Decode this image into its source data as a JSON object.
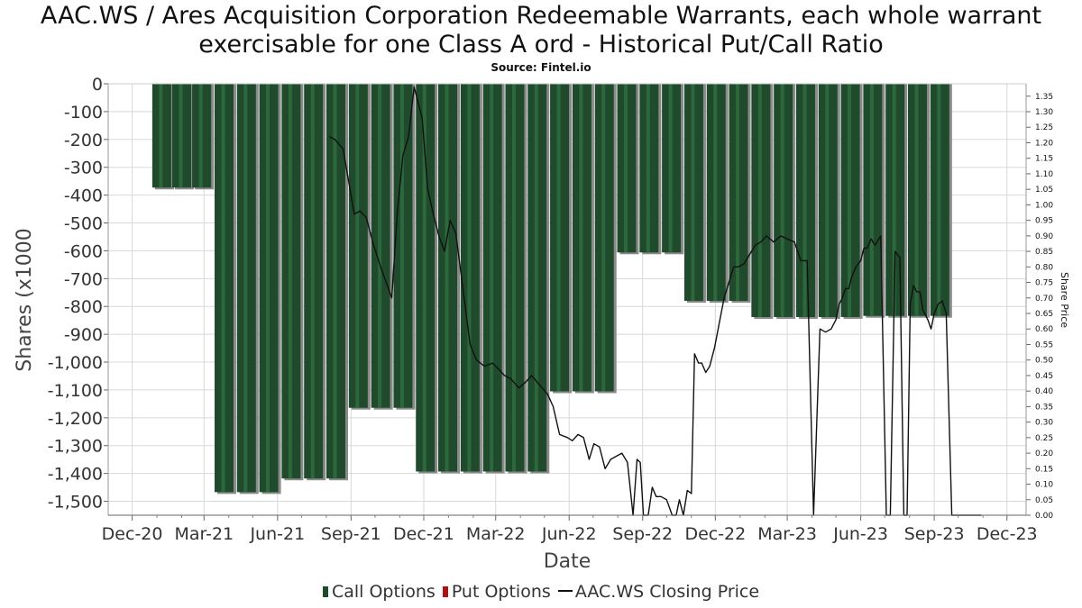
{
  "title": "AAC.WS / Ares Acquisition Corporation Redeemable Warrants, each whole warrant exercisable for one Class A ord - Historical Put/Call Ratio",
  "subtitle": "Source: Fintel.io",
  "colors": {
    "call": "#1f4a2c",
    "put": "#b01010",
    "price": "#111111",
    "grid": "#d8d8d8"
  },
  "chart_data": {
    "type": "bar",
    "xlabel": "Date",
    "ylabel": "Shares (x1000",
    "y2label": "Share Price",
    "x_range": [
      "2020-11-01",
      "2023-12-25"
    ],
    "ylim": [
      -1550,
      0
    ],
    "y2lim": [
      0,
      1.39
    ],
    "grid": true,
    "legend_position": "bottom",
    "x_ticks": [
      {
        "label": "Dec-20",
        "date": "2020-12-01"
      },
      {
        "label": "Mar-21",
        "date": "2021-03-01"
      },
      {
        "label": "Jun-21",
        "date": "2021-06-01"
      },
      {
        "label": "Sep-21",
        "date": "2021-09-01"
      },
      {
        "label": "Dec-21",
        "date": "2021-12-01"
      },
      {
        "label": "Mar-22",
        "date": "2022-03-01"
      },
      {
        "label": "Jun-22",
        "date": "2022-06-01"
      },
      {
        "label": "Sep-22",
        "date": "2022-09-01"
      },
      {
        "label": "Dec-22",
        "date": "2022-12-01"
      },
      {
        "label": "Mar-23",
        "date": "2023-03-01"
      },
      {
        "label": "Jun-23",
        "date": "2023-06-01"
      },
      {
        "label": "Sep-23",
        "date": "2023-09-01"
      },
      {
        "label": "Dec-23",
        "date": "2023-12-01"
      }
    ],
    "y_ticks": [
      {
        "value": 0,
        "label": "0"
      },
      {
        "value": -100,
        "label": "-100"
      },
      {
        "value": -200,
        "label": "-200"
      },
      {
        "value": -300,
        "label": "-300"
      },
      {
        "value": -400,
        "label": "-400"
      },
      {
        "value": -500,
        "label": "-500"
      },
      {
        "value": -600,
        "label": "-600"
      },
      {
        "value": -700,
        "label": "-700"
      },
      {
        "value": -800,
        "label": "-800"
      },
      {
        "value": -900,
        "label": "-900"
      },
      {
        "value": -1000,
        "label": "-1,000"
      },
      {
        "value": -1100,
        "label": "-1,100"
      },
      {
        "value": -1200,
        "label": "-1,200"
      },
      {
        "value": -1300,
        "label": "-1,300"
      },
      {
        "value": -1400,
        "label": "-1,400"
      },
      {
        "value": -1500,
        "label": "-1,500"
      }
    ],
    "y2_ticks": [
      {
        "value": 0.0,
        "label": "0.00"
      },
      {
        "value": 0.05,
        "label": "0.05"
      },
      {
        "value": 0.1,
        "label": "0.10"
      },
      {
        "value": 0.15,
        "label": "0.15"
      },
      {
        "value": 0.2,
        "label": "0.20"
      },
      {
        "value": 0.25,
        "label": "0.25"
      },
      {
        "value": 0.3,
        "label": "0.30"
      },
      {
        "value": 0.35,
        "label": "0.35"
      },
      {
        "value": 0.4,
        "label": "0.40"
      },
      {
        "value": 0.45,
        "label": "0.45"
      },
      {
        "value": 0.5,
        "label": "0.50"
      },
      {
        "value": 0.55,
        "label": "0.55"
      },
      {
        "value": 0.6,
        "label": "0.60"
      },
      {
        "value": 0.65,
        "label": "0.65"
      },
      {
        "value": 0.7,
        "label": "0.70"
      },
      {
        "value": 0.75,
        "label": "0.75"
      },
      {
        "value": 0.8,
        "label": "0.80"
      },
      {
        "value": 0.85,
        "label": "0.85"
      },
      {
        "value": 0.9,
        "label": "0.90"
      },
      {
        "value": 0.95,
        "label": "0.95"
      },
      {
        "value": 1.0,
        "label": "1.00"
      },
      {
        "value": 1.05,
        "label": "1.05"
      },
      {
        "value": 1.1,
        "label": "1.10"
      },
      {
        "value": 1.15,
        "label": "1.15"
      },
      {
        "value": 1.2,
        "label": "1.20"
      },
      {
        "value": 1.25,
        "label": "1.25"
      },
      {
        "value": 1.3,
        "label": "1.30"
      },
      {
        "value": 1.35,
        "label": "1.35"
      }
    ],
    "series": [
      {
        "name": "Call Options",
        "x": [
          "2021-01-07",
          "2021-02-01",
          "2021-02-26",
          "2021-03-26",
          "2021-04-23",
          "2021-05-21",
          "2021-06-18",
          "2021-07-16",
          "2021-08-13",
          "2021-09-10",
          "2021-10-08",
          "2021-11-05",
          "2021-12-03",
          "2021-12-31",
          "2022-01-28",
          "2022-02-25",
          "2022-03-25",
          "2022-04-22",
          "2022-05-20",
          "2022-06-17",
          "2022-07-15",
          "2022-08-12",
          "2022-09-09",
          "2022-10-07",
          "2022-11-04",
          "2022-12-02",
          "2022-12-30",
          "2023-01-27",
          "2023-02-24",
          "2023-03-24",
          "2023-04-21",
          "2023-05-19",
          "2023-06-16",
          "2023-07-14",
          "2023-08-11",
          "2023-09-08"
        ],
        "values": [
          -373,
          -373,
          -373,
          -1467,
          -1467,
          -1467,
          -1418,
          -1418,
          -1418,
          -1164,
          -1164,
          -1164,
          -1393,
          -1393,
          -1393,
          -1393,
          -1393,
          -1393,
          -1105,
          -1105,
          -1105,
          -606,
          -606,
          -606,
          -780,
          -780,
          -780,
          -838,
          -838,
          -838,
          -838,
          -838,
          -834,
          -834,
          -834,
          -834
        ]
      },
      {
        "name": "Put Options",
        "x": [],
        "values": []
      },
      {
        "name": "AAC.WS Closing Price",
        "axis": "right",
        "x": [
          "2021-08-05",
          "2021-08-12",
          "2021-08-22",
          "2021-09-05",
          "2021-09-12",
          "2021-09-20",
          "2021-09-28",
          "2021-10-08",
          "2021-10-15",
          "2021-10-22",
          "2021-10-29",
          "2021-11-05",
          "2021-11-12",
          "2021-11-19",
          "2021-11-29",
          "2021-12-06",
          "2021-12-13",
          "2021-12-20",
          "2021-12-27",
          "2022-01-03",
          "2022-01-10",
          "2022-01-18",
          "2022-01-28",
          "2022-02-05",
          "2022-02-15",
          "2022-02-25",
          "2022-03-05",
          "2022-03-12",
          "2022-03-20",
          "2022-03-30",
          "2022-04-08",
          "2022-04-15",
          "2022-04-25",
          "2022-05-05",
          "2022-05-12",
          "2022-05-20",
          "2022-05-30",
          "2022-06-05",
          "2022-06-12",
          "2022-06-19",
          "2022-06-26",
          "2022-07-02",
          "2022-07-09",
          "2022-07-16",
          "2022-07-23",
          "2022-07-30",
          "2022-08-06",
          "2022-08-13",
          "2022-08-20",
          "2022-08-25",
          "2022-08-29",
          "2022-09-02",
          "2022-09-08",
          "2022-09-13",
          "2022-09-18",
          "2022-09-24",
          "2022-10-01",
          "2022-10-08",
          "2022-10-13",
          "2022-10-17",
          "2022-10-22",
          "2022-10-27",
          "2022-11-01",
          "2022-11-05",
          "2022-11-10",
          "2022-11-14",
          "2022-11-19",
          "2022-11-24",
          "2022-11-30",
          "2022-12-06",
          "2022-12-12",
          "2022-12-18",
          "2022-12-24",
          "2022-12-30",
          "2023-01-06",
          "2023-01-13",
          "2023-01-20",
          "2023-01-27",
          "2023-02-03",
          "2023-02-12",
          "2023-02-21",
          "2023-03-01",
          "2023-03-10",
          "2023-03-18",
          "2023-03-26",
          "2023-04-03",
          "2023-04-11",
          "2023-04-18",
          "2023-04-25",
          "2023-05-01",
          "2023-05-05",
          "2023-05-09",
          "2023-05-13",
          "2023-05-17",
          "2023-05-21",
          "2023-05-26",
          "2023-06-01",
          "2023-06-05",
          "2023-06-09",
          "2023-06-14",
          "2023-06-19",
          "2023-06-26",
          "2023-07-03",
          "2023-07-08",
          "2023-07-14",
          "2023-07-20",
          "2023-07-25",
          "2023-07-29",
          "2023-08-02",
          "2023-08-06",
          "2023-08-10",
          "2023-08-14",
          "2023-08-18",
          "2023-08-24",
          "2023-08-28",
          "2023-09-01",
          "2023-09-06",
          "2023-09-11",
          "2023-09-16",
          "2023-09-23",
          "2023-09-30",
          "2023-10-08",
          "2023-10-15",
          "2023-10-20",
          "2023-10-23",
          "2023-10-30"
        ],
        "values": [
          1.22,
          1.21,
          1.18,
          0.97,
          0.98,
          0.96,
          0.88,
          0.8,
          0.75,
          0.7,
          0.98,
          1.16,
          1.22,
          1.38,
          1.28,
          1.05,
          0.97,
          0.9,
          0.85,
          0.95,
          0.91,
          0.75,
          0.55,
          0.5,
          0.48,
          0.49,
          0.47,
          0.45,
          0.44,
          0.41,
          0.43,
          0.45,
          0.42,
          0.39,
          0.35,
          0.26,
          0.25,
          0.24,
          0.26,
          0.25,
          0.18,
          0.23,
          0.22,
          0.15,
          0.18,
          0.19,
          0.2,
          0.17,
          0.0,
          0.18,
          0.17,
          0.0,
          0.0,
          0.09,
          0.06,
          0.06,
          0.05,
          0.0,
          0.0,
          0.05,
          0.0,
          0.08,
          0.07,
          0.52,
          0.49,
          0.49,
          0.46,
          0.48,
          0.54,
          0.62,
          0.7,
          0.75,
          0.8,
          0.8,
          0.81,
          0.84,
          0.87,
          0.88,
          0.9,
          0.88,
          0.9,
          0.89,
          0.88,
          0.82,
          0.82,
          0.0,
          0.6,
          0.59,
          0.6,
          0.63,
          0.68,
          0.7,
          0.73,
          0.73,
          0.77,
          0.8,
          0.82,
          0.86,
          0.86,
          0.89,
          0.87,
          0.9,
          0.0,
          0.0,
          0.85,
          0.83,
          0.0,
          0.0,
          0.68,
          0.74,
          0.72,
          0.72,
          0.66,
          0.63,
          0.6,
          0.65,
          0.68,
          0.69,
          0.65,
          0.0,
          0.0,
          0.0,
          0.0,
          0.0,
          0.0,
          0.0
        ]
      }
    ]
  }
}
